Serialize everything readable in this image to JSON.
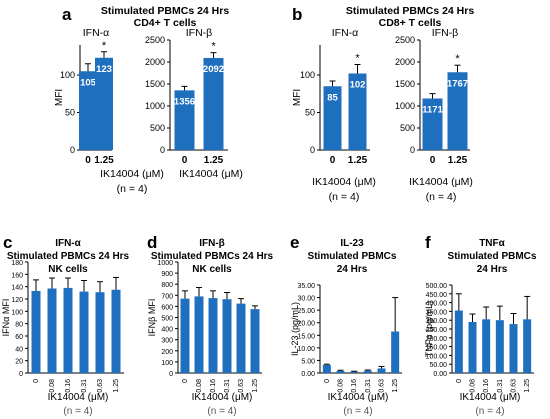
{
  "panel_labels": [
    "a",
    "b",
    "c",
    "d",
    "e",
    "f"
  ],
  "panel_a": {
    "title_line1": "Stimulated PBMCs 24 Hrs",
    "title_line2": "CD4+ T cells",
    "ylabel": "MFI",
    "xlabel": "IK14004 (μM)",
    "n": "(n = 4)"
  },
  "panel_b": {
    "title_line1": "Stimulated PBMCs 24 Hrs",
    "title_line2": "CD8+ T cells",
    "ylabel": "MFI",
    "xlabel": "IK14004 (μM)",
    "n": "(n = 4)"
  },
  "panel_c": {
    "l1": "IFN-α",
    "l2": "Stimulated PBMCs 24 Hrs",
    "l3": "NK cells",
    "xlabel": "IK14004 (μM)",
    "n": "(n = 4)"
  },
  "panel_d": {
    "l1": "IFN-β",
    "l2": "Stimulated PBMCs 24 Hrs",
    "l3": "NK cells",
    "xlabel": "IK14004 (μM)",
    "n": "(n = 4)"
  },
  "panel_e": {
    "l1": "IL-23",
    "l2": "Stimulated PBMCs",
    "l3": "24 Hrs",
    "xlabel": "IK14004 (μM)",
    "n": "(n = 4)"
  },
  "panel_f": {
    "l1": "TNFα",
    "l2": "Stimulated PBMCs",
    "l3": "24 Hrs",
    "xlabel": "IK14004 (μM)",
    "n": "(n = 4)"
  },
  "colors": {
    "bar": "#1f6fbf",
    "axis": "#000000"
  },
  "chart_data": [
    {
      "id": "a1",
      "type": "bar",
      "title": "IFN-α",
      "ylabel": "MFI",
      "categories": [
        "0",
        "1.25"
      ],
      "values": [
        105,
        123
      ],
      "errors": [
        10,
        8
      ],
      "data_labels": [
        "105",
        "123"
      ],
      "significance": [
        "",
        "*"
      ],
      "ylim": [
        0,
        140
      ],
      "yticks": [
        0,
        50,
        100
      ],
      "tick_fmt": ""
    },
    {
      "id": "a2",
      "type": "bar",
      "title": "IFN-β",
      "ylabel": "",
      "categories": [
        "0",
        "1.25"
      ],
      "values": [
        1356,
        2092
      ],
      "errors": [
        90,
        120
      ],
      "data_labels": [
        "1356",
        "2092"
      ],
      "significance": [
        "",
        "*"
      ],
      "ylim": [
        0,
        2500
      ],
      "yticks": [
        0,
        500,
        1000,
        1500,
        2000,
        2500
      ],
      "tick_fmt": ""
    },
    {
      "id": "b1",
      "type": "bar",
      "title": "IFN-α",
      "ylabel": "MFI",
      "categories": [
        "0",
        "1.25"
      ],
      "values": [
        85,
        102
      ],
      "errors": [
        7,
        12
      ],
      "data_labels": [
        "85",
        "102"
      ],
      "significance": [
        "",
        "*"
      ],
      "ylim": [
        0,
        140
      ],
      "yticks": [
        0,
        50,
        100
      ],
      "tick_fmt": ""
    },
    {
      "id": "b2",
      "type": "bar",
      "title": "IFN-β",
      "ylabel": "",
      "categories": [
        "0",
        "1.25"
      ],
      "values": [
        1171,
        1767
      ],
      "errors": [
        110,
        160
      ],
      "data_labels": [
        "1171",
        "1767"
      ],
      "significance": [
        "",
        "*"
      ],
      "ylim": [
        0,
        2500
      ],
      "yticks": [
        0,
        500,
        1000,
        1500,
        2000,
        2500
      ],
      "tick_fmt": ""
    },
    {
      "id": "c",
      "type": "bar",
      "title": "",
      "ylabel": "IFNα MFI",
      "categories": [
        "0",
        "0.08",
        "0.16",
        "0.31",
        "0.63",
        "1.25"
      ],
      "values": [
        133,
        137,
        138,
        132,
        131,
        135
      ],
      "errors": [
        18,
        17,
        16,
        18,
        17,
        20
      ],
      "data_labels": [],
      "significance": [],
      "ylim": [
        0,
        180
      ],
      "yticks": [
        0,
        20,
        40,
        60,
        80,
        100,
        120,
        140,
        160,
        180
      ],
      "tick_fmt": ""
    },
    {
      "id": "d",
      "type": "bar",
      "title": "",
      "ylabel": "IFNβ MFI",
      "categories": [
        "0",
        "0.08",
        "0.16",
        "0.31",
        "0.63",
        "1.25"
      ],
      "values": [
        670,
        690,
        675,
        665,
        625,
        575
      ],
      "errors": [
        70,
        80,
        65,
        60,
        45,
        30
      ],
      "data_labels": [],
      "significance": [],
      "ylim": [
        0,
        1000
      ],
      "yticks": [
        0,
        100,
        200,
        300,
        400,
        500,
        600,
        700,
        800,
        900,
        1000
      ],
      "tick_fmt": ""
    },
    {
      "id": "e",
      "type": "bar",
      "title": "",
      "ylabel": "IL-23 (pg/mL)",
      "categories": [
        "0",
        "0.08",
        "0.16",
        "0.31",
        "0.63",
        "1.25"
      ],
      "values": [
        3.2,
        0.8,
        0.5,
        0.9,
        1.8,
        16.5
      ],
      "errors": [
        0.3,
        0.3,
        0.2,
        0.3,
        0.8,
        13.5
      ],
      "data_labels": [],
      "significance": [],
      "ylim": [
        0,
        35
      ],
      "yticks": [
        0,
        5,
        10,
        15,
        20,
        25,
        30,
        35
      ],
      "tick_fmt": "0.00"
    },
    {
      "id": "f",
      "type": "bar",
      "title": "",
      "ylabel": "TNFα (pg/mL)",
      "categories": [
        "0",
        "0.08",
        "0.16",
        "0.31",
        "0.63",
        "1.25"
      ],
      "values": [
        355,
        290,
        305,
        300,
        278,
        305
      ],
      "errors": [
        95,
        45,
        70,
        80,
        60,
        130
      ],
      "data_labels": [],
      "significance": [],
      "ylim": [
        0,
        500
      ],
      "yticks": [
        0,
        50,
        100,
        150,
        200,
        250,
        300,
        350,
        400,
        450,
        500
      ],
      "tick_fmt": "0.00"
    }
  ]
}
